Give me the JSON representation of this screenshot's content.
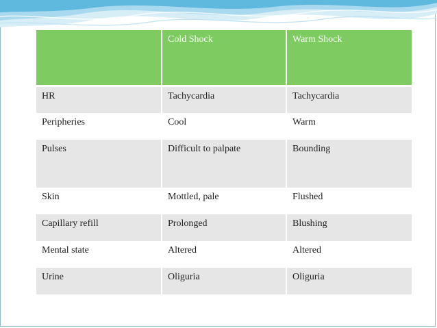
{
  "table": {
    "columns": [
      "",
      "Cold Shock",
      "Warm Shock"
    ],
    "rows": [
      [
        "HR",
        "Tachycardia",
        "Tachycardia"
      ],
      [
        "Peripheries",
        "Cool",
        "Warm"
      ],
      [
        "Pulses",
        "Difficult to palpate",
        "Bounding"
      ],
      [
        "Skin",
        "Mottled, pale",
        "Flushed"
      ],
      [
        "Capillary refill",
        "Prolonged",
        "Blushing"
      ],
      [
        "Mental state",
        "Altered",
        "Altered"
      ],
      [
        "Urine",
        "Oliguria",
        "Oliguria"
      ]
    ]
  },
  "colors": {
    "header_fill": "#7ecb61",
    "row_shade": "#e6e6e6",
    "wave_accent": "#5fb8de"
  }
}
